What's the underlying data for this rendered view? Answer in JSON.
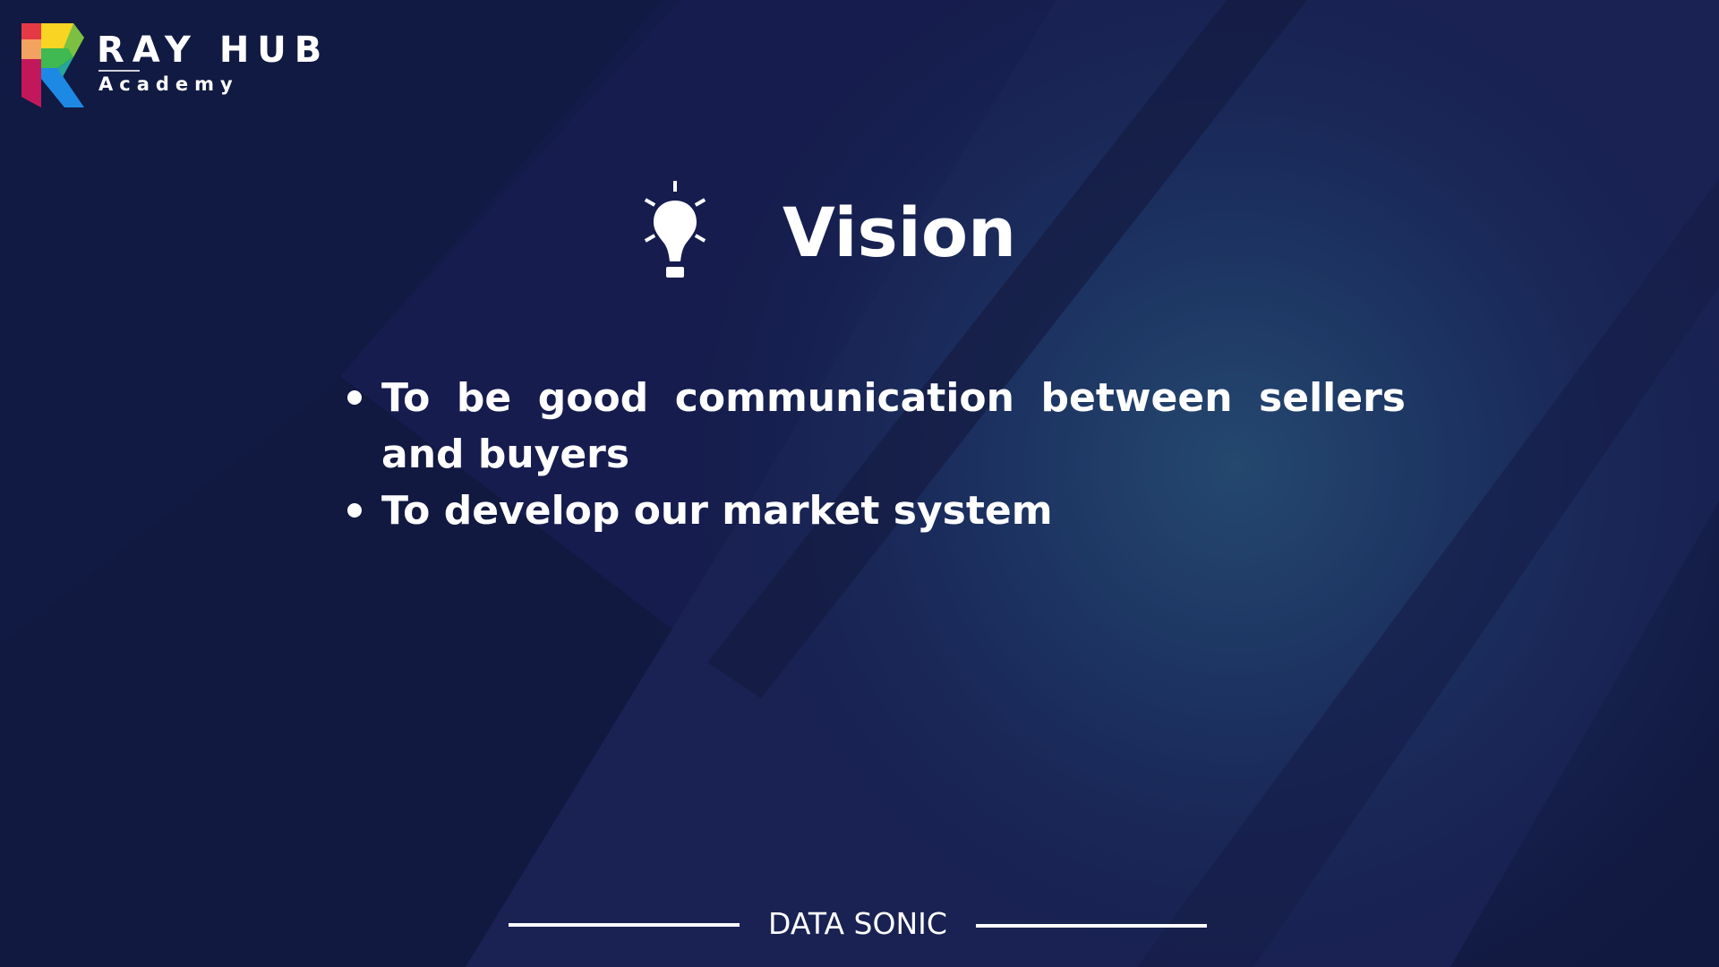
{
  "logo": {
    "title": "RAY HUB",
    "subtitle": "Academy"
  },
  "slide": {
    "title": "Vision",
    "title_icon": "lightbulb-icon",
    "bullets": [
      "To be good communication between sellers and buyers",
      "To develop our market system"
    ]
  },
  "footer": {
    "label": "DATA SONIC"
  },
  "colors": {
    "background": "#111940",
    "background_glow": "#23466e",
    "text": "#ffffff"
  }
}
